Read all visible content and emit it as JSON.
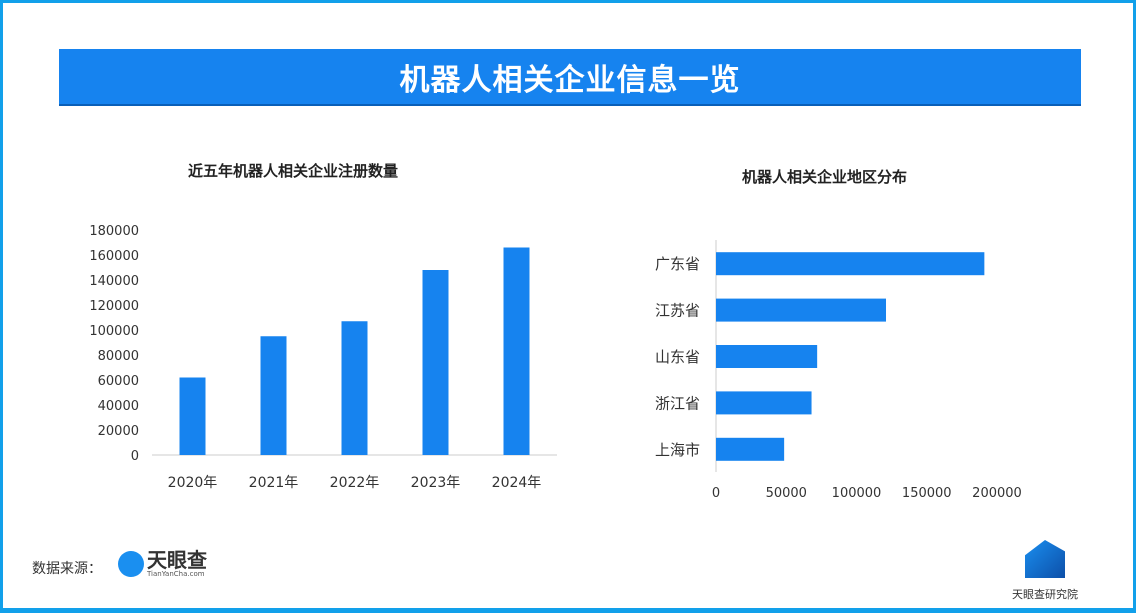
{
  "header": {
    "title": "机器人相关企业信息一览"
  },
  "colors": {
    "accent": "#1683ef",
    "frame": "#12a0ea"
  },
  "chart_data": [
    {
      "type": "bar",
      "title": "近五年机器人相关企业注册数量",
      "categories": [
        "2020年",
        "2021年",
        "2022年",
        "2023年",
        "2024年"
      ],
      "values": [
        62000,
        95000,
        107000,
        148000,
        166000
      ],
      "yticks": [
        "0",
        "20000",
        "40000",
        "60000",
        "80000",
        "100000",
        "120000",
        "140000",
        "160000",
        "180000"
      ],
      "ylim": [
        0,
        180000
      ],
      "xlabel": "",
      "ylabel": ""
    },
    {
      "type": "bar",
      "orientation": "horizontal",
      "title": "机器人相关企业地区分布",
      "categories": [
        "广东省",
        "江苏省",
        "山东省",
        "浙江省",
        "上海市"
      ],
      "values": [
        191000,
        121000,
        72000,
        68000,
        48500
      ],
      "xticks": [
        "0",
        "50000",
        "100000",
        "150000",
        "200000"
      ],
      "xlim": [
        0,
        200000
      ],
      "xlabel": "",
      "ylabel": ""
    }
  ],
  "footer": {
    "source_label": "数据来源：",
    "source_logo": "天眼查",
    "source_logo_sub": "TianYanCha.com",
    "brand": "天眼查研究院"
  }
}
